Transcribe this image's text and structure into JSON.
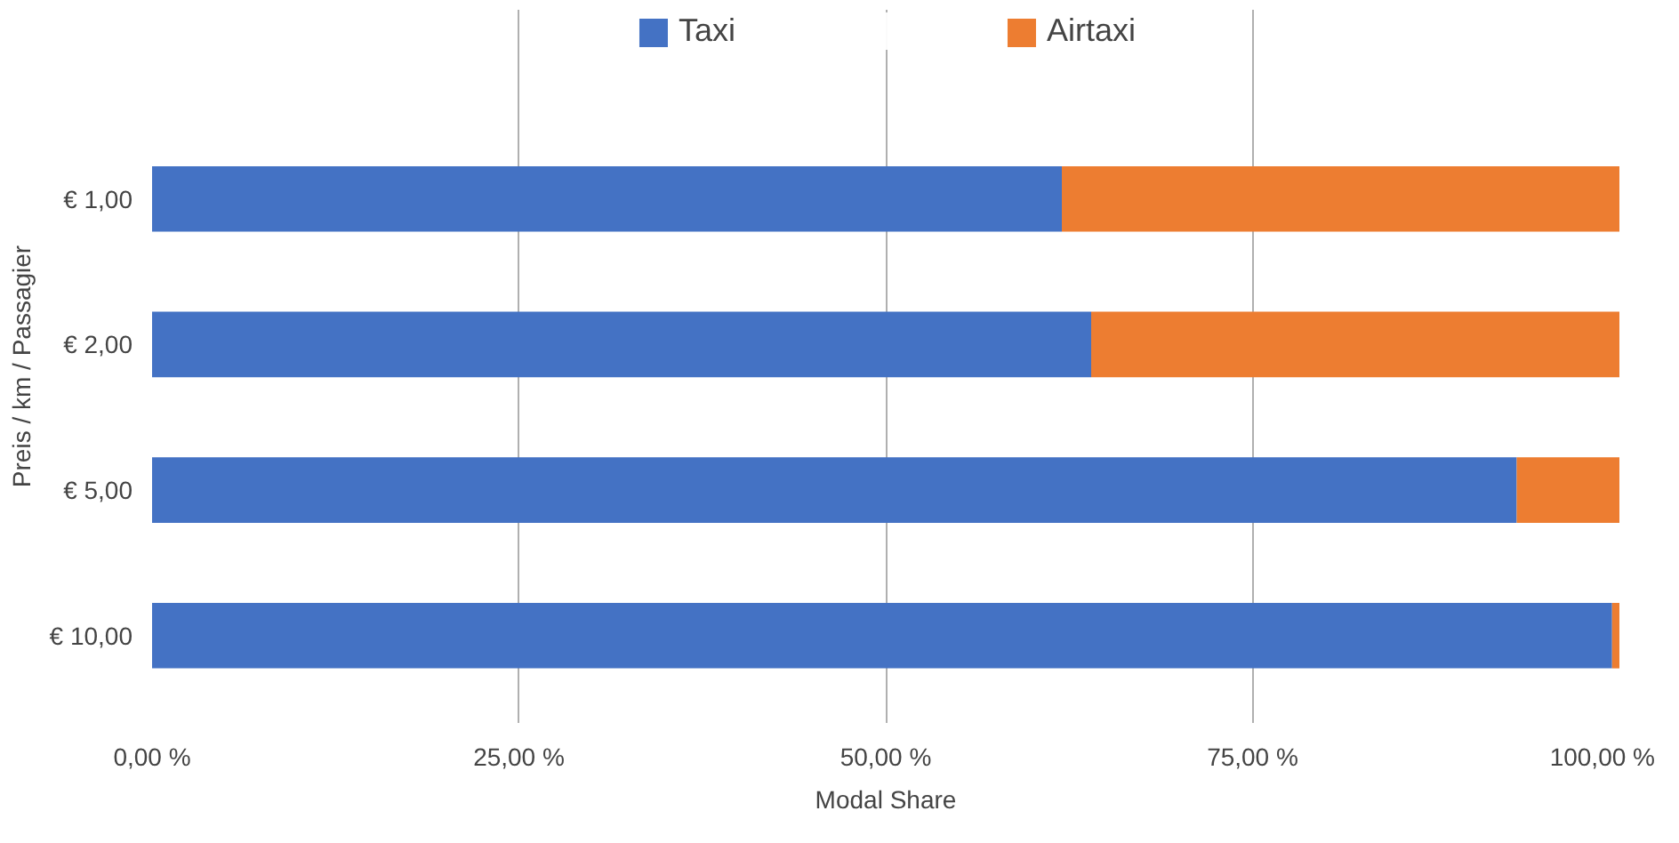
{
  "chart_data": {
    "type": "bar",
    "orientation": "horizontal",
    "stacked": true,
    "xlabel": "Modal Share",
    "ylabel": "Preis / km / Passagier",
    "categories": [
      "€ 1,00",
      "€ 2,00",
      "€ 5,00",
      "€ 10,00"
    ],
    "series": [
      {
        "name": "Taxi",
        "color": "#4472c4",
        "values": [
          62,
          64,
          93,
          99.5
        ]
      },
      {
        "name": "Airtaxi",
        "color": "#ed7d31",
        "values": [
          38,
          36,
          7,
          0.5
        ]
      }
    ],
    "xlim": [
      0,
      100
    ],
    "xticks": [
      {
        "value": 0,
        "label": "0,00 %"
      },
      {
        "value": 25,
        "label": "25,00 %"
      },
      {
        "value": 50,
        "label": "50,00 %"
      },
      {
        "value": 75,
        "label": "75,00 %"
      },
      {
        "value": 100,
        "label": "100,00 %"
      }
    ],
    "grid": "x",
    "legend": "top"
  }
}
